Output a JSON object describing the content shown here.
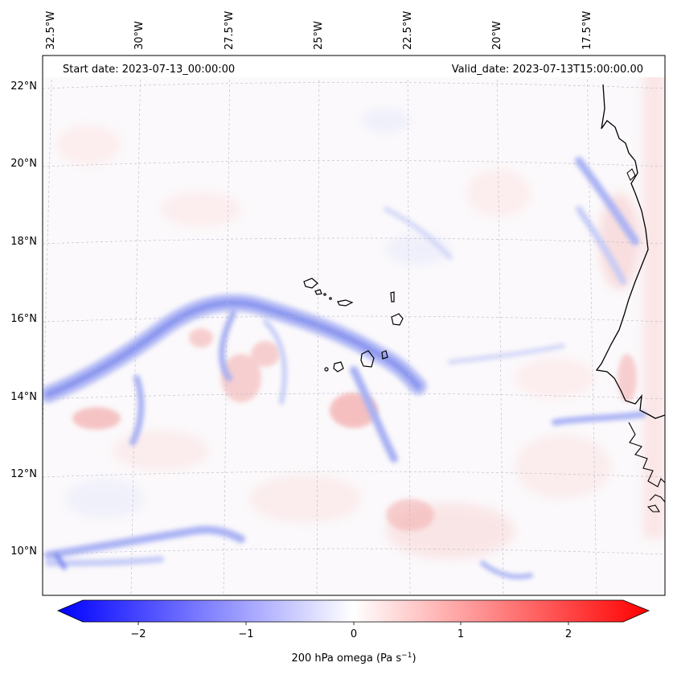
{
  "header": {
    "start_date": "Start date: 2023-07-13_00:00:00",
    "valid_date": "Valid_date: 2023-07-13T15:00:00.00"
  },
  "longitude_labels": [
    "32.5°W",
    "30°W",
    "27.5°W",
    "25°W",
    "22.5°W",
    "20°W",
    "17.5°W"
  ],
  "latitude_labels": [
    "22°N",
    "20°N",
    "18°N",
    "16°N",
    "14°N",
    "12°N",
    "10°N"
  ],
  "colorbar": {
    "label": "200 hPa omega (Pa s",
    "label_superscript": "−1",
    "label_end": ")",
    "ticks": [
      "−2",
      "−1",
      "0",
      "1",
      "2"
    ],
    "range": [
      -2.6,
      2.6
    ],
    "colormap": "bwr",
    "colors": {
      "negative": "#0000ff",
      "zero": "#ffffff",
      "positive": "#ff0000"
    }
  },
  "map": {
    "projection": "conic",
    "gridlines": true,
    "coastline_color": "#000000",
    "bands": {
      "subsidence_band_color": "#8a96f0",
      "ascent_patch_color": "#f2a0a0"
    }
  }
}
